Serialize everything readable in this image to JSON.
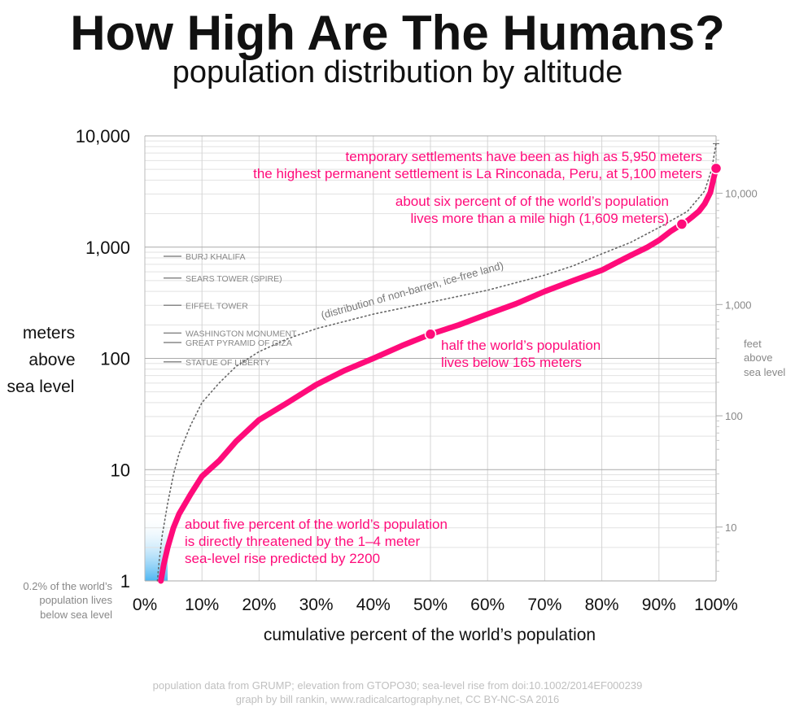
{
  "title": "How High Are The Humans?",
  "subtitle": "population distribution by altitude",
  "footer": {
    "line1": "population data from GRUMP; elevation from GTOPO30; sea-level rise from doi:10.1002/2014EF000239",
    "line2": "graph by bill rankin, www.radicalcartography.net, CC BY-NC-SA 2016"
  },
  "chart_data": {
    "type": "line",
    "xlabel": "cumulative percent of the world’s population",
    "ylabel": [
      "meters",
      "above",
      "sea level"
    ],
    "y2label": [
      "feet",
      "above",
      "sea level"
    ],
    "xlim": [
      0,
      100
    ],
    "ylim": [
      1,
      10000
    ],
    "yscale": "log",
    "grid": true,
    "colors": {
      "population": "#ff0b7a",
      "land": "#666666",
      "sea": "#5bc0f5",
      "landmark": "#888888"
    },
    "x_ticks": [
      "0%",
      "10%",
      "20%",
      "30%",
      "40%",
      "50%",
      "60%",
      "70%",
      "80%",
      "90%",
      "100%"
    ],
    "y_ticks": [
      {
        "value": 1,
        "label": "1"
      },
      {
        "value": 10,
        "label": "10"
      },
      {
        "value": 100,
        "label": "100"
      },
      {
        "value": 1000,
        "label": "1,000"
      },
      {
        "value": 10000,
        "label": "10,000"
      }
    ],
    "y2_ticks": [
      {
        "value": 10,
        "label": "10"
      },
      {
        "value": 100,
        "label": "100"
      },
      {
        "value": 1000,
        "label": "1,000"
      },
      {
        "value": 10000,
        "label": "10,000"
      }
    ],
    "series": [
      {
        "key": "population",
        "x": [
          2.8,
          3.3,
          4,
          5,
          6,
          8,
          10,
          13,
          16,
          20,
          25,
          30,
          35,
          40,
          45,
          50,
          55,
          60,
          65,
          70,
          75,
          80,
          85,
          88,
          90,
          92,
          94,
          95,
          96,
          97,
          98,
          99,
          99.5,
          100
        ],
        "values": [
          1,
          1.4,
          2,
          3,
          4,
          6,
          8.7,
          12,
          18,
          28,
          40,
          58,
          78,
          100,
          130,
          165,
          200,
          250,
          310,
          400,
          500,
          620,
          840,
          1000,
          1150,
          1380,
          1609,
          1730,
          1900,
          2100,
          2450,
          3100,
          4000,
          5100
        ]
      },
      {
        "key": "land",
        "name": "(distribution of non-barren, ice-free land)",
        "x": [
          2.2,
          2.5,
          3,
          4,
          5,
          6,
          8,
          10,
          13,
          16,
          20,
          25,
          30,
          40,
          50,
          60,
          70,
          75,
          80,
          85,
          90,
          95,
          98,
          99,
          99.5,
          100
        ],
        "values": [
          1,
          1.5,
          2.5,
          5,
          9,
          14,
          25,
          40,
          60,
          85,
          115,
          150,
          185,
          250,
          320,
          410,
          560,
          680,
          870,
          1100,
          1500,
          2100,
          3200,
          4600,
          6000,
          8500
        ]
      }
    ],
    "markers": [
      {
        "x": 50,
        "y": 165
      },
      {
        "x": 94,
        "y": 1609
      },
      {
        "x": 100,
        "y": 5100
      }
    ],
    "sea_band": {
      "x": [
        0,
        4
      ],
      "y": [
        1,
        4
      ]
    },
    "landmarks": [
      {
        "name": "BURJ KHALIFA",
        "y": 828
      },
      {
        "name": "SEARS TOWER (SPIRE)",
        "y": 527
      },
      {
        "name": "EIFFEL TOWER",
        "y": 300
      },
      {
        "name": "WASHINGTON MONUMENT",
        "y": 169
      },
      {
        "name": "GREAT PYRAMID OF GIZA",
        "y": 139
      },
      {
        "name": "STATUE OF LIBERTY",
        "y": 93
      }
    ],
    "annotations": {
      "top1": "temporary settlements have been as high as 5,950 meters",
      "top2": "the highest permanent settlement is La Rinconada, Peru, at 5,100 meters",
      "mile1": "about six percent of of the world’s population",
      "mile2": "lives more than a mile high (1,609 meters)",
      "half1": "half the world’s population",
      "half2": "lives below 165 meters",
      "sea1": "about five percent of the world’s population",
      "sea2": "is directly threatened by the 1–4 meter",
      "sea3": "sea-level rise predicted by 2200",
      "below1": "0.2% of the world’s",
      "below2": "population lives",
      "below3": "below sea level"
    }
  }
}
